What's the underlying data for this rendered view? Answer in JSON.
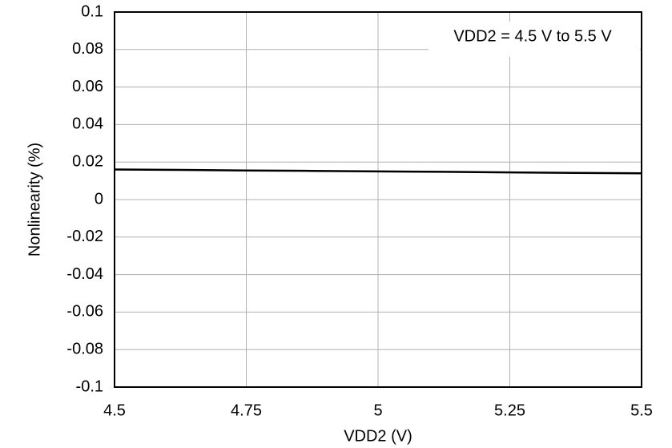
{
  "chart_data": {
    "type": "line",
    "x_label": "VDD2 (V)",
    "y_label": "Nonlinearity (%)",
    "annotation": "VDD2 = 4.5 V to 5.5 V",
    "x": [
      4.5,
      4.625,
      4.75,
      4.875,
      5,
      5.125,
      5.25,
      5.375,
      5.5
    ],
    "values": [
      0.016,
      0.0158,
      0.0155,
      0.0153,
      0.015,
      0.0148,
      0.0145,
      0.0142,
      0.014
    ],
    "color": "#000000",
    "xlim": [
      4.5,
      5.5
    ],
    "xticks": [
      4.5,
      4.75,
      5,
      5.25,
      5.5
    ],
    "ylim": [
      -0.1,
      0.1
    ],
    "yticks": [
      0.1,
      0.08,
      0.06,
      0.04,
      0.02,
      0,
      -0.02,
      -0.04,
      -0.06,
      -0.08,
      -0.1
    ],
    "grid": true
  }
}
